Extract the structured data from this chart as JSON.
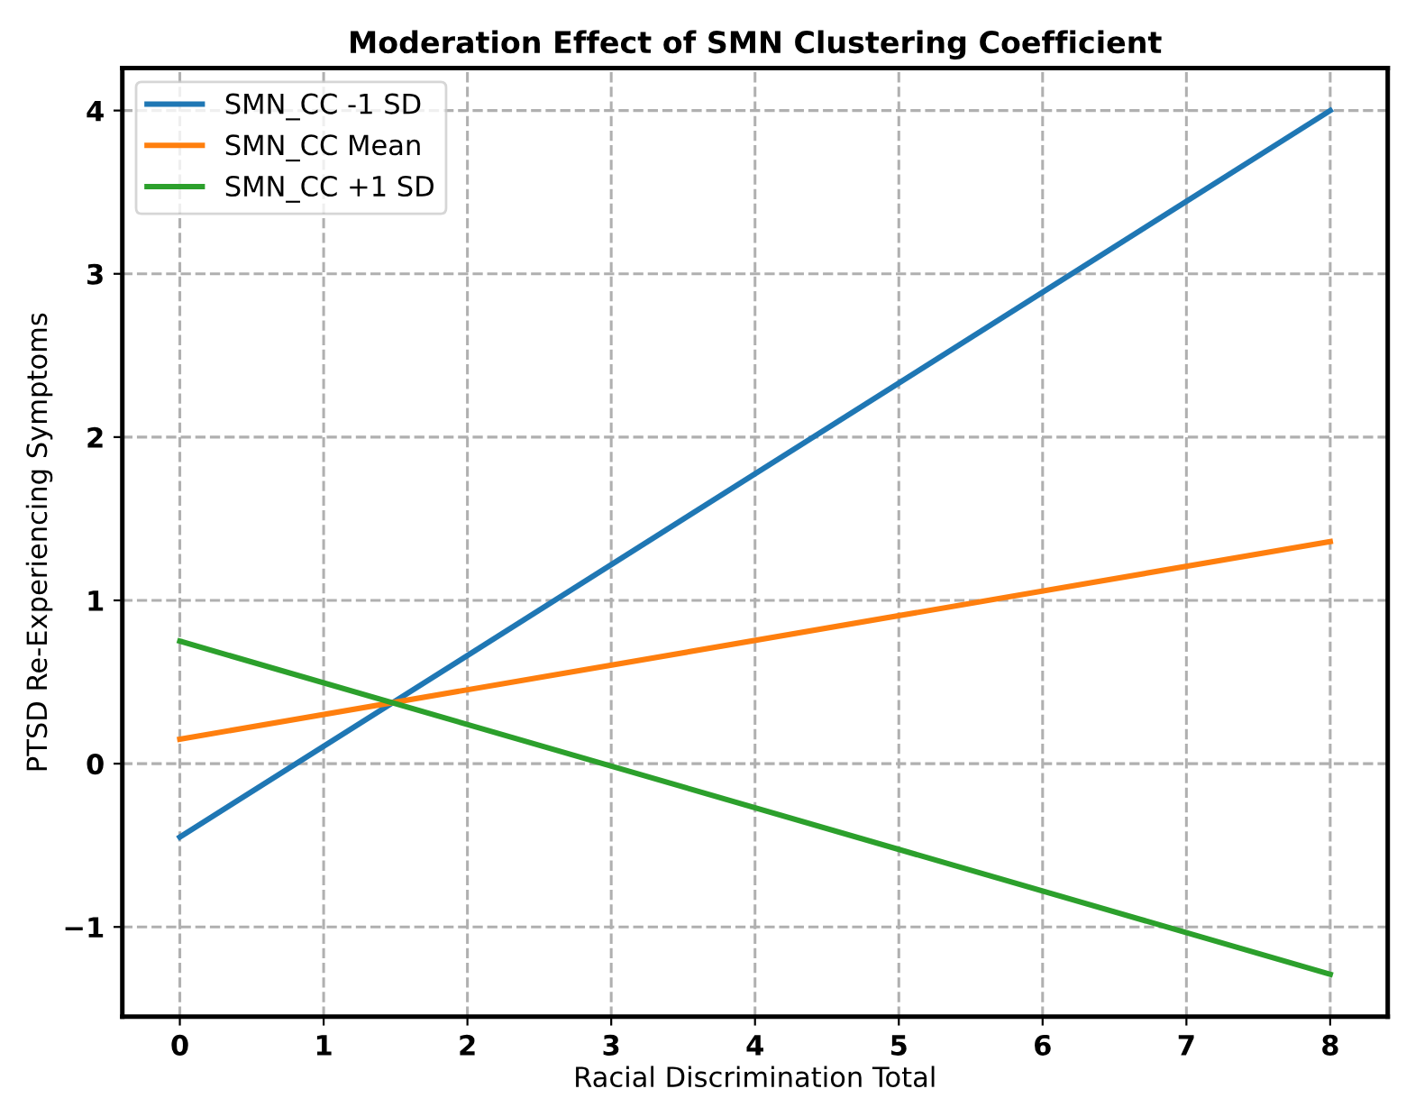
{
  "chart_data": {
    "type": "line",
    "title": "Moderation Effect of SMN Clustering Coefficient",
    "xlabel": "Racial Discrimination Total",
    "ylabel": "PTSD Re-Experiencing Symptoms",
    "x": [
      0,
      8
    ],
    "series": [
      {
        "name": "SMN_CC -1 SD",
        "color": "#1f77b4",
        "values": [
          -0.45,
          4.0
        ]
      },
      {
        "name": "SMN_CC Mean",
        "color": "#ff7f0e",
        "values": [
          0.15,
          1.36
        ]
      },
      {
        "name": "SMN_CC +1 SD",
        "color": "#2ca02c",
        "values": [
          0.75,
          -1.29
        ]
      }
    ],
    "xlim": [
      -0.4,
      8.4
    ],
    "xticks": [
      0,
      1,
      2,
      3,
      4,
      5,
      6,
      7,
      8
    ],
    "ylim": [
      -1.55,
      4.26
    ],
    "yticks": [
      {
        "value": -1,
        "label": "−1"
      },
      0,
      1,
      2,
      3,
      4
    ],
    "grid": true,
    "legend": "top left",
    "line_style": "solid",
    "marker": "none"
  }
}
